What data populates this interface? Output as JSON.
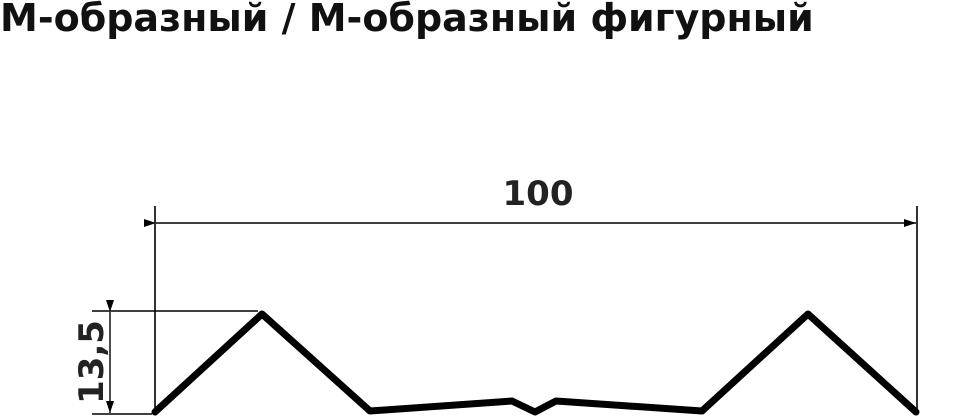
{
  "title": "М-образный / М-образный фигурный",
  "dimensions": {
    "width_label": "100",
    "height_label": "13,5"
  },
  "colors": {
    "profile": "#000000",
    "dimension_lines": "#000000",
    "text": "#222222"
  }
}
